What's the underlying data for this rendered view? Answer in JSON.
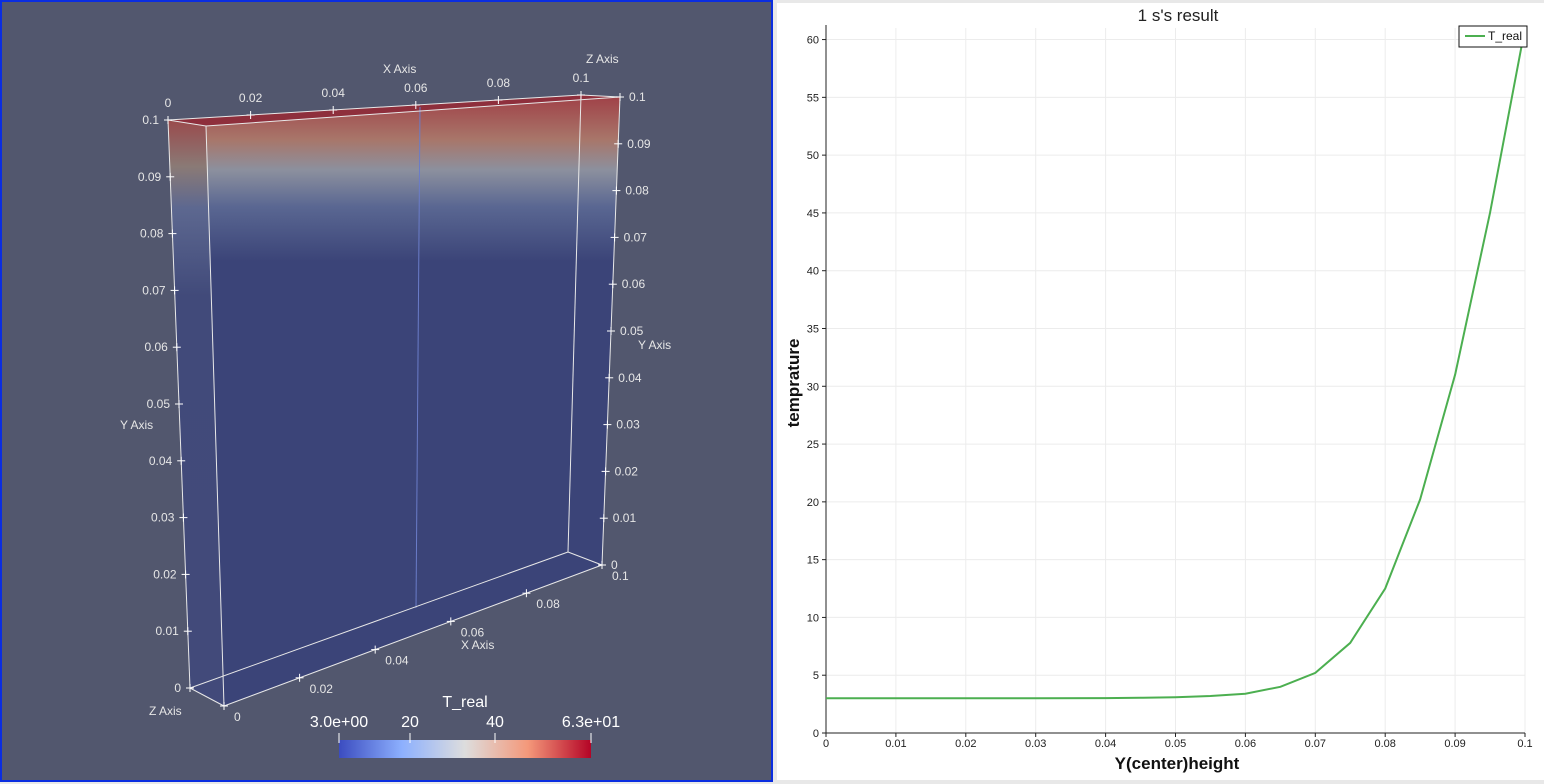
{
  "render_view": {
    "colorbar": {
      "title": "T_real",
      "labels": [
        "3.0e+00",
        "20",
        "40",
        "6.3e+01"
      ],
      "colors": {
        "low": "#3b4cc0",
        "mid": "#dddddd",
        "high": "#b40426"
      }
    },
    "axes": {
      "x_title": "X Axis",
      "y_title": "Y Axis",
      "z_title": "Z Axis",
      "top_x_ticks": [
        "0",
        "0.02",
        "0.04",
        "0.06",
        "0.08",
        "0.1"
      ],
      "left_y_ticks": [
        "0.1",
        "0.09",
        "0.08",
        "0.07",
        "0.06",
        "0.05",
        "0.04",
        "0.03",
        "0.02",
        "0.01",
        "0"
      ],
      "right_y_ticks": [
        "0.1",
        "0.09",
        "0.08",
        "0.07",
        "0.06",
        "0.05",
        "0.04",
        "0.03",
        "0.02",
        "0.01",
        "0"
      ],
      "bottom_x_ticks": [
        "0",
        "0.02",
        "0.04",
        "0.06",
        "0.08",
        "0.1"
      ]
    },
    "background_color": "#52576e",
    "active_border_color": "#0a2de0"
  },
  "chart_data": {
    "type": "line",
    "title": "1 s's result",
    "xlabel": "Y(center)height",
    "ylabel": "temprature",
    "xlim": [
      0,
      0.1
    ],
    "ylim": [
      0,
      61
    ],
    "x_ticks": [
      "0",
      "0.01",
      "0.02",
      "0.03",
      "0.04",
      "0.05",
      "0.06",
      "0.07",
      "0.08",
      "0.09",
      "0.1"
    ],
    "y_ticks": [
      "0",
      "5",
      "10",
      "15",
      "20",
      "25",
      "30",
      "35",
      "40",
      "45",
      "50",
      "55",
      "60"
    ],
    "grid": true,
    "legend_position": "top-right",
    "series": [
      {
        "name": "T_real",
        "color": "#4caf50",
        "x": [
          0,
          0.01,
          0.02,
          0.03,
          0.04,
          0.045,
          0.05,
          0.055,
          0.06,
          0.065,
          0.07,
          0.075,
          0.08,
          0.085,
          0.09,
          0.095,
          0.1
        ],
        "y": [
          3.0,
          3.0,
          3.0,
          3.0,
          3.02,
          3.05,
          3.1,
          3.2,
          3.4,
          4.0,
          5.2,
          7.8,
          12.5,
          20.2,
          31.0,
          45.0,
          61.0
        ]
      }
    ]
  }
}
